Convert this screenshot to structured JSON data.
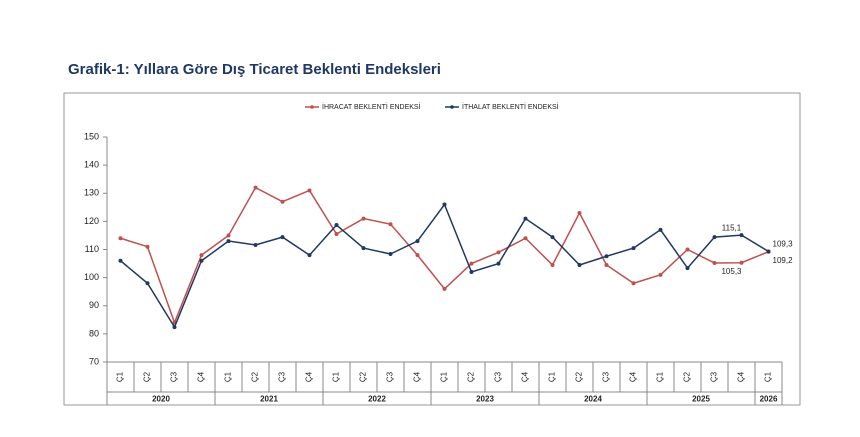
{
  "chart_data": {
    "type": "line",
    "title": "Grafik-1: Yıllara Göre Dış Ticaret Beklenti Endeksleri",
    "categories": [
      "Ç1",
      "Ç2",
      "Ç3",
      "Ç4",
      "Ç1",
      "Ç2",
      "Ç3",
      "Ç4",
      "Ç1",
      "Ç2",
      "Ç3",
      "Ç4",
      "Ç1",
      "Ç2",
      "Ç3",
      "Ç4",
      "Ç1",
      "Ç2",
      "Ç3",
      "Ç4",
      "Ç1",
      "Ç2",
      "Ç3",
      "Ç4",
      "Ç1"
    ],
    "x_groups": [
      {
        "label": "2020",
        "count": 4
      },
      {
        "label": "2021",
        "count": 4
      },
      {
        "label": "2022",
        "count": 4
      },
      {
        "label": "2023",
        "count": 4
      },
      {
        "label": "2024",
        "count": 4
      },
      {
        "label": "2025",
        "count": 4
      },
      {
        "label": "2026",
        "count": 1
      }
    ],
    "series": [
      {
        "name": "İHRACAT BEKLENTİ ENDEKSİ",
        "color": "#c0504d",
        "values": [
          114,
          111,
          84,
          108,
          115,
          132,
          127,
          131,
          115.5,
          121,
          119,
          108,
          96,
          105,
          109,
          114,
          104.5,
          123,
          104.5,
          98,
          101,
          110,
          105.2,
          105.3,
          109.2
        ],
        "value_labels": [
          null,
          null,
          null,
          null,
          null,
          null,
          null,
          null,
          null,
          null,
          null,
          null,
          null,
          null,
          null,
          null,
          null,
          null,
          null,
          null,
          null,
          null,
          null,
          "105,3",
          "109,2"
        ]
      },
      {
        "name": "İTHALAT BEKLENTİ ENDEKSİ",
        "color": "#1f3864",
        "values": [
          106,
          98,
          82.4,
          106,
          113,
          111.6,
          114.4,
          108,
          118.7,
          110.5,
          108.4,
          113,
          126,
          102,
          105,
          121,
          114.4,
          104.5,
          107.6,
          110.5,
          117,
          103.4,
          114.4,
          115.1,
          109.3
        ],
        "value_labels": [
          null,
          null,
          null,
          null,
          null,
          null,
          null,
          null,
          null,
          null,
          null,
          null,
          null,
          null,
          null,
          null,
          null,
          null,
          null,
          null,
          null,
          null,
          null,
          "115,1",
          "109,3"
        ]
      }
    ],
    "ylim": [
      70,
      150
    ],
    "yticks": [
      70,
      80,
      90,
      100,
      110,
      120,
      130,
      140,
      150
    ]
  }
}
